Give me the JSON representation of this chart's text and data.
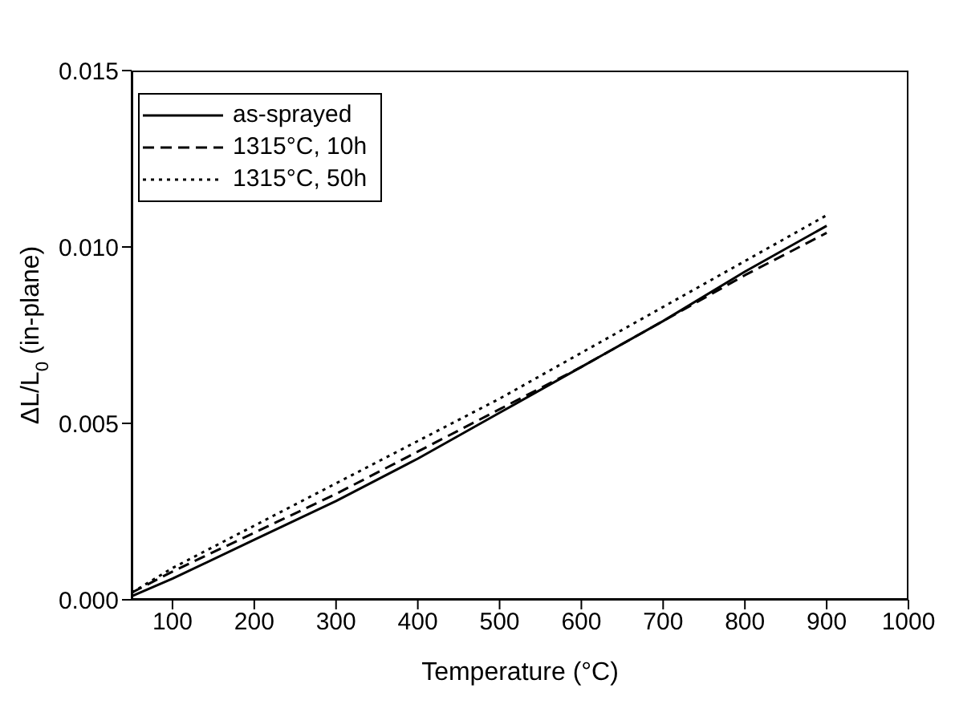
{
  "chart_data": {
    "type": "line",
    "xlabel": "Temperature (°C)",
    "ylabel": "ΔL/L$_{0}$ (in-plane)",
    "xlim": [
      50,
      1000
    ],
    "xticks": [
      100,
      200,
      300,
      400,
      500,
      600,
      700,
      800,
      900,
      1000
    ],
    "ylim": [
      0,
      0.015
    ],
    "yticks": [
      {
        "value": 0,
        "label": "0.000"
      },
      {
        "value": 0.005,
        "label": "0.005"
      },
      {
        "value": 0.01,
        "label": "0.010"
      },
      {
        "value": 0.015,
        "label": "0.015"
      }
    ],
    "x": [
      50,
      100,
      200,
      300,
      400,
      500,
      600,
      700,
      800,
      900
    ],
    "series": [
      {
        "name": "as-sprayed",
        "color": "#000000",
        "line_style": "solid",
        "values": [
          0.0001,
          0.0006,
          0.0017,
          0.0028,
          0.004,
          0.0053,
          0.0066,
          0.0079,
          0.0093,
          0.0106
        ]
      },
      {
        "name": "1315°C, 10h",
        "color": "#000000",
        "line_style": "dashed",
        "values": [
          0.0002,
          0.0008,
          0.0019,
          0.003,
          0.0042,
          0.0054,
          0.0066,
          0.0079,
          0.0092,
          0.0104
        ]
      },
      {
        "name": "1315°C, 50h",
        "color": "#000000",
        "line_style": "dotted",
        "values": [
          0.0002,
          0.0009,
          0.0021,
          0.0033,
          0.0045,
          0.0057,
          0.007,
          0.0083,
          0.0096,
          0.0109
        ]
      }
    ],
    "legend": "top left",
    "grid": false,
    "marker": "none"
  }
}
